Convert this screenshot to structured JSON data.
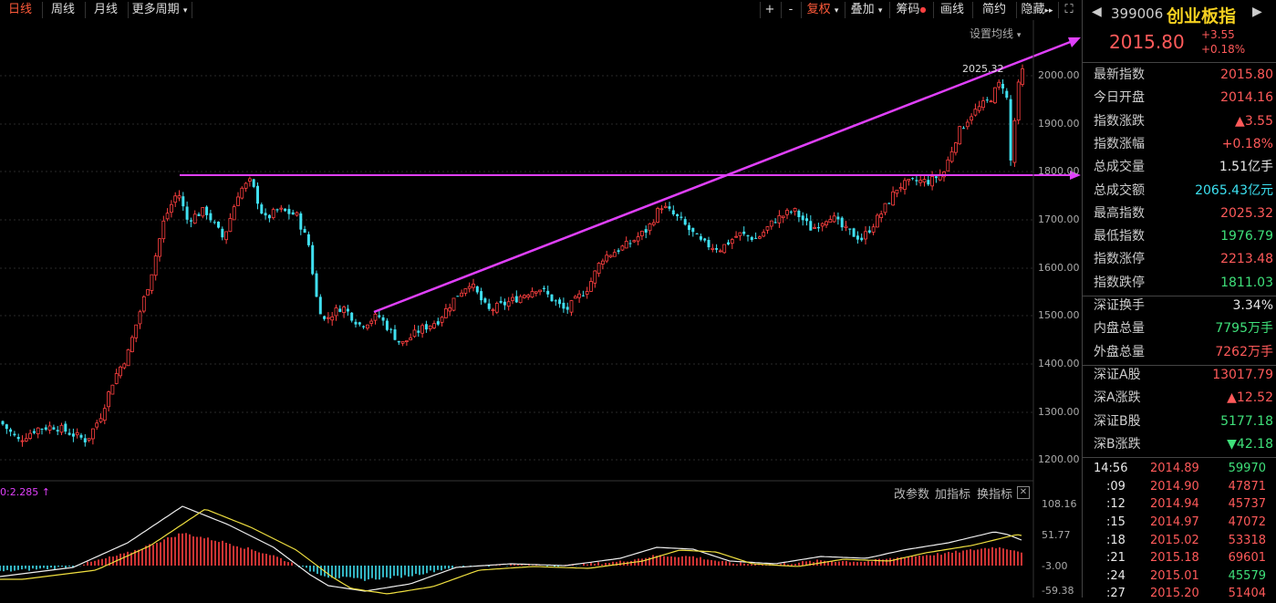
{
  "toolbar": {
    "tabs": [
      "日线",
      "周线",
      "月线",
      "更多周期"
    ],
    "active_tab": "日线",
    "right_buttons": [
      "+",
      "-",
      "复权",
      "叠加",
      "筹码",
      "画线",
      "简约",
      "隐藏"
    ],
    "ma_settings": "设置均线",
    "fullscreen_icon": "expand-icon"
  },
  "price_axis": [
    "2000.00",
    "1900.00",
    "1800.00",
    "1700.00",
    "1600.00",
    "1500.00",
    "1400.00",
    "1300.00",
    "1200.00"
  ],
  "peak_label": "2025.32",
  "indicator": {
    "label": "0:2.285",
    "buttons": [
      "改参数",
      "加指标",
      "换指标"
    ],
    "axis": [
      "108.16",
      "51.77",
      "-3.00",
      "-59.38"
    ]
  },
  "quote": {
    "code": "399006",
    "name": "创业板指",
    "price": "2015.80",
    "change": "+3.55",
    "change_pct": "+0.18%"
  },
  "stats": [
    {
      "label": "最新指数",
      "value": "2015.80",
      "color": "red"
    },
    {
      "label": "今日开盘",
      "value": "2014.16",
      "color": "red"
    },
    {
      "label": "指数涨跌",
      "value": "▲3.55",
      "color": "red"
    },
    {
      "label": "指数涨幅",
      "value": "+0.18%",
      "color": "red"
    },
    {
      "label": "总成交量",
      "value": "1.51亿手",
      "color": "white"
    },
    {
      "label": "总成交额",
      "value": "2065.43亿元",
      "color": "cyan"
    },
    {
      "label": "最高指数",
      "value": "2025.32",
      "color": "red"
    },
    {
      "label": "最低指数",
      "value": "1976.79",
      "color": "green"
    },
    {
      "label": "指数涨停",
      "value": "2213.48",
      "color": "red"
    },
    {
      "label": "指数跌停",
      "value": "1811.03",
      "color": "green"
    }
  ],
  "stats2": [
    {
      "label": "深证换手",
      "value": "3.34%",
      "color": "white"
    },
    {
      "label": "内盘总量",
      "value": "7795万手",
      "color": "green"
    },
    {
      "label": "外盘总量",
      "value": "7262万手",
      "color": "red"
    }
  ],
  "stats3": [
    {
      "label": "深证A股",
      "value": "13017.79",
      "color": "red"
    },
    {
      "label": "深A涨跌",
      "value": "▲12.52",
      "color": "red"
    },
    {
      "label": "深证B股",
      "value": "5177.18",
      "color": "green"
    },
    {
      "label": "深B涨跌",
      "value": "▼42.18",
      "color": "green"
    }
  ],
  "ticks": [
    {
      "time": "14:56",
      "price": "2014.89",
      "vol": "59970",
      "vol_color": "green"
    },
    {
      "time": ":09",
      "price": "2014.90",
      "vol": "47871",
      "vol_color": "red"
    },
    {
      "time": ":12",
      "price": "2014.94",
      "vol": "45737",
      "vol_color": "red"
    },
    {
      "time": ":15",
      "price": "2014.97",
      "vol": "47072",
      "vol_color": "red"
    },
    {
      "time": ":18",
      "price": "2015.02",
      "vol": "53318",
      "vol_color": "red"
    },
    {
      "time": ":21",
      "price": "2015.18",
      "vol": "69601",
      "vol_color": "red"
    },
    {
      "time": ":24",
      "price": "2015.01",
      "vol": "45579",
      "vol_color": "green"
    },
    {
      "time": ":27",
      "price": "2015.20",
      "vol": "51404",
      "vol_color": "red"
    }
  ],
  "colors": {
    "up": "#ff4040",
    "down": "#40e0f0",
    "trendline": "#e040fb",
    "bg": "#000000"
  }
}
